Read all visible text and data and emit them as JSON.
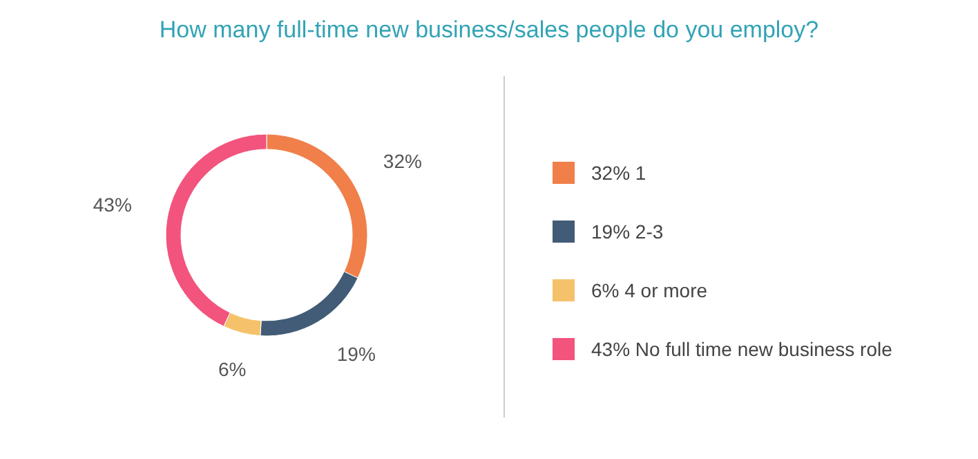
{
  "chart_data": {
    "type": "donut",
    "title": "How many full-time new business/sales people do you employ?",
    "categories": [
      "1",
      "2-3",
      "4 or more",
      "No full time new business role"
    ],
    "values": [
      32,
      19,
      6,
      43
    ],
    "value_labels": [
      "32%",
      "19%",
      "6%",
      "43%"
    ],
    "colors": [
      "#f07f4a",
      "#425b76",
      "#f5c26b",
      "#f2547d"
    ],
    "legend": "right"
  }
}
